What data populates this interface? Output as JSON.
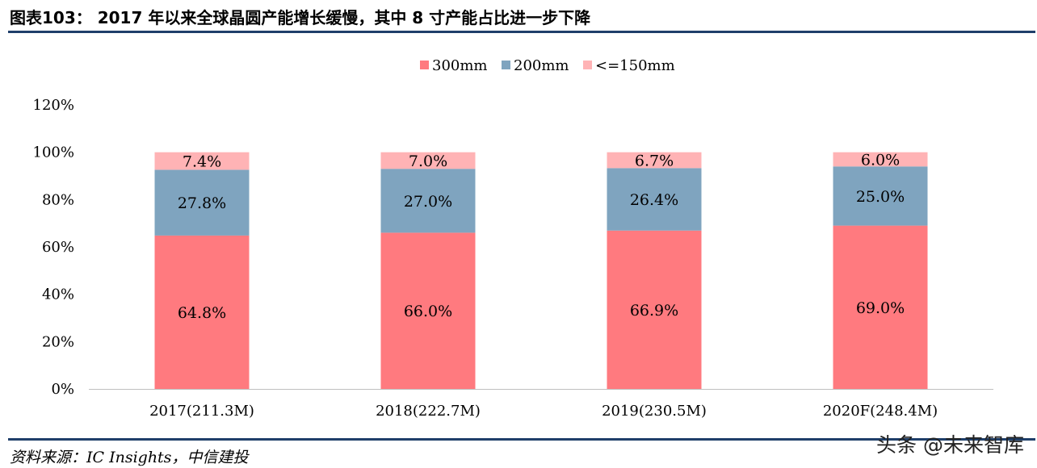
{
  "header": {
    "title": "图表103：  2017 年以来全球晶圆产能增长缓慢，其中 8 寸产能占比进一步下降"
  },
  "footer": {
    "source": "资料来源：IC Insights，中信建投",
    "watermark": "头条 @未来智库"
  },
  "chart_data": {
    "type": "bar",
    "stacked": true,
    "categories": [
      "2017(211.3M)",
      "2018(222.7M)",
      "2019(230.5M)",
      "2020F(248.4M)"
    ],
    "series": [
      {
        "name": "300mm",
        "values": [
          64.8,
          66.0,
          66.9,
          69.0
        ],
        "labels": [
          "64.8%",
          "66.0%",
          "66.9%",
          "69.0%"
        ],
        "color": "#ff7a7f"
      },
      {
        "name": "200mm",
        "values": [
          27.8,
          27.0,
          26.4,
          25.0
        ],
        "labels": [
          "27.8%",
          "27.0%",
          "26.4%",
          "25.0%"
        ],
        "color": "#7fa4bf"
      },
      {
        "name": "<=150mm",
        "values": [
          7.4,
          7.0,
          6.7,
          6.0
        ],
        "labels": [
          "7.4%",
          "7.0%",
          "6.7%",
          "6.0%"
        ],
        "color": "#ffb3b5"
      }
    ],
    "yticks": [
      "0%",
      "20%",
      "40%",
      "60%",
      "80%",
      "100%",
      "120%"
    ],
    "ylim": [
      0,
      120
    ],
    "legend_position": "top-center",
    "grid": false
  }
}
